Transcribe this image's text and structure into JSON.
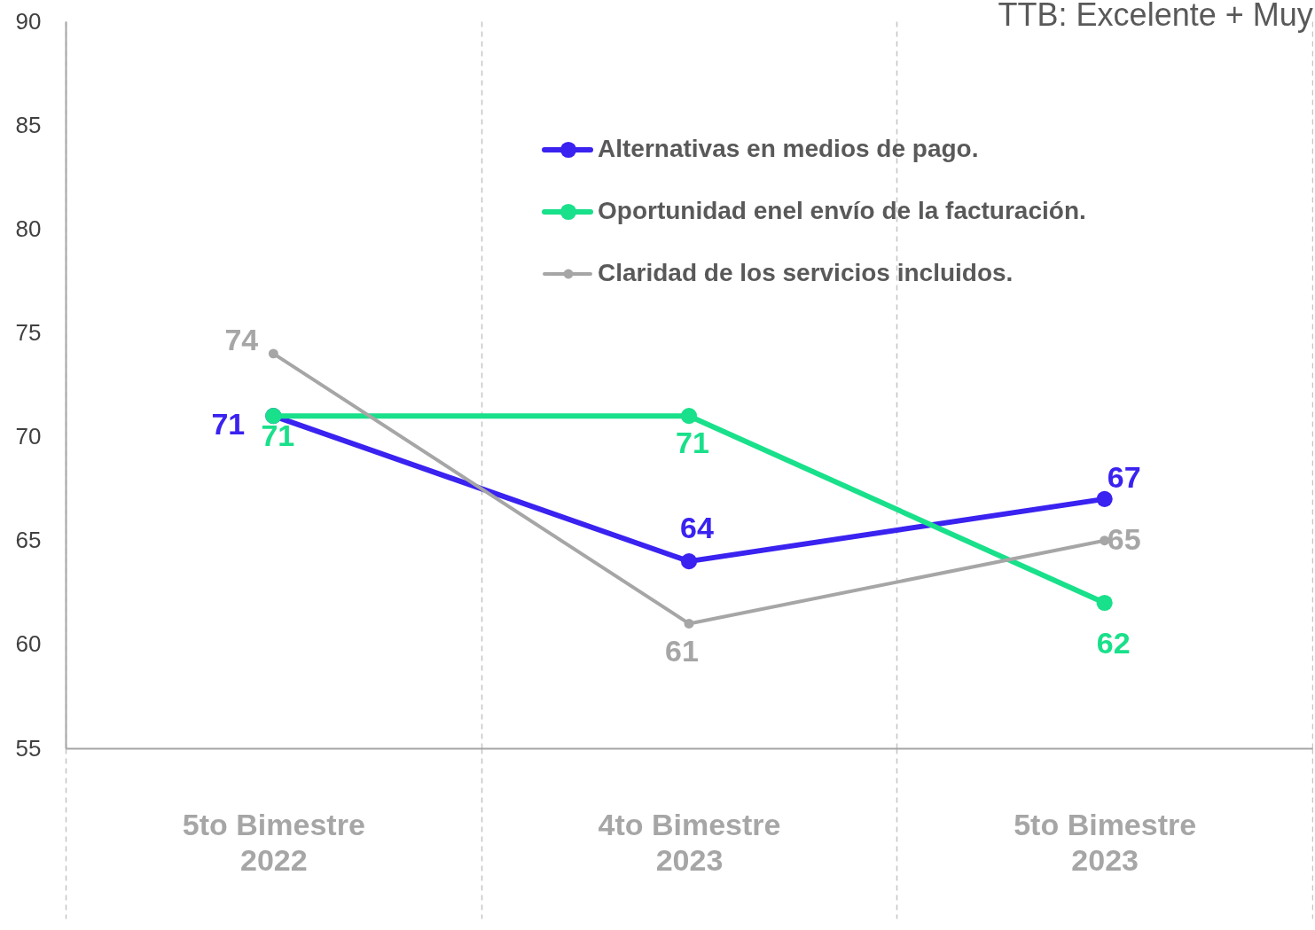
{
  "chart_data": {
    "type": "line",
    "title": "TTB: Excelente + Muy",
    "categories": [
      "5to Bimestre 2022",
      "4to Bimestre 2023",
      "5to Bimestre 2023"
    ],
    "series": [
      {
        "name": "Alternativas en medios de pago.",
        "color": "#3a22f0",
        "values": [
          71,
          64,
          67
        ]
      },
      {
        "name": "Oportunidad enel envío de la facturación.",
        "color": "#19e08a",
        "values": [
          71,
          71,
          62
        ]
      },
      {
        "name": "Claridad de los servicios incluidos.",
        "color": "#a6a6a6",
        "values": [
          74,
          61,
          65
        ]
      }
    ],
    "ylim": [
      55,
      90
    ],
    "yticks": [
      55,
      60,
      65,
      70,
      75,
      80,
      85,
      90
    ],
    "data_labels": true,
    "marker": "circle",
    "line_style": "solid",
    "legend": "top right",
    "grid": "x"
  }
}
